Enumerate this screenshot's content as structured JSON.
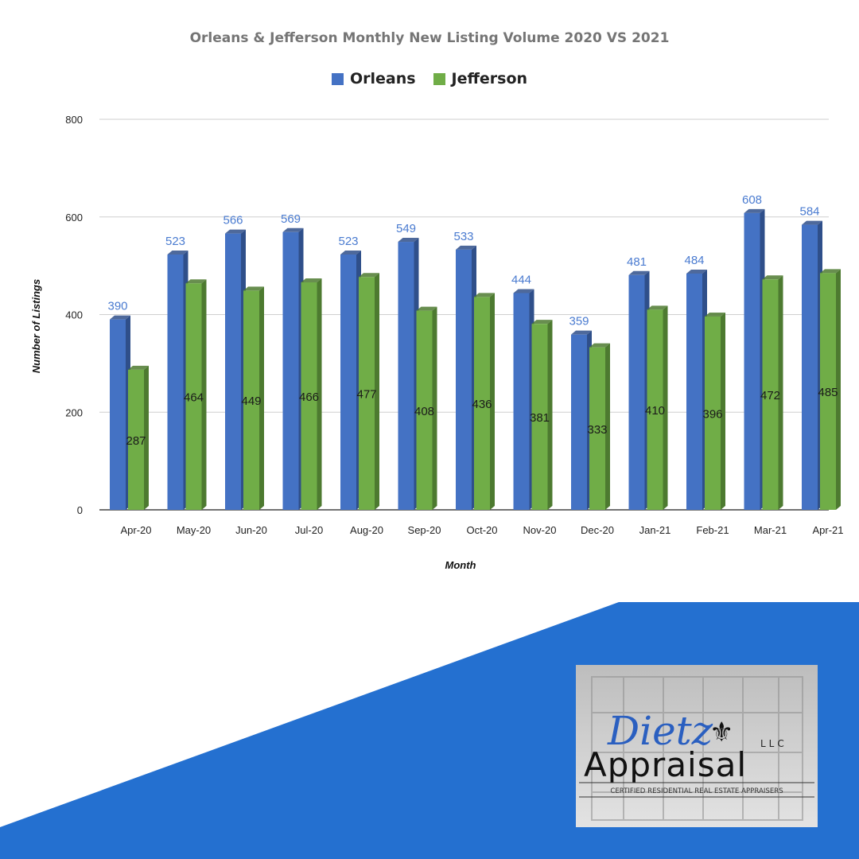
{
  "colors": {
    "orleans": "#4472c4",
    "orleans_side": "#2f4f8a",
    "jefferson": "#70ad47",
    "jefferson_side": "#4d7a30",
    "band": "#2470d0",
    "label_orleans": "#4a7bd0",
    "label_jefferson": "#1a1a1a"
  },
  "chart_data": {
    "type": "bar",
    "title": "Orleans & Jefferson  Monthly New Listing Volume 2020 VS 2021",
    "xlabel": "Month",
    "ylabel": "Number of Listings",
    "categories": [
      "Apr-20",
      "May-20",
      "Jun-20",
      "Jul-20",
      "Aug-20",
      "Sep-20",
      "Oct-20",
      "Nov-20",
      "Dec-20",
      "Jan-21",
      "Feb-21",
      "Mar-21",
      "Apr-21"
    ],
    "series": [
      {
        "name": "Orleans",
        "values": [
          390,
          523,
          566,
          569,
          523,
          549,
          533,
          444,
          359,
          481,
          484,
          608,
          584
        ]
      },
      {
        "name": "Jefferson",
        "values": [
          287,
          464,
          449,
          466,
          477,
          408,
          436,
          381,
          333,
          410,
          396,
          472,
          485
        ]
      }
    ],
    "ylim": [
      0,
      800
    ],
    "yticks": [
      0,
      200,
      400,
      600,
      800
    ],
    "grid": true,
    "legend_position": "top"
  },
  "logo": {
    "script_text": "Dietz",
    "main_text": "Appraisal",
    "suffix": "LLC",
    "tagline": "CERTIFIED RESIDENTIAL REAL ESTATE APPRAISERS",
    "icon": "fleur-de-lis-icon"
  }
}
